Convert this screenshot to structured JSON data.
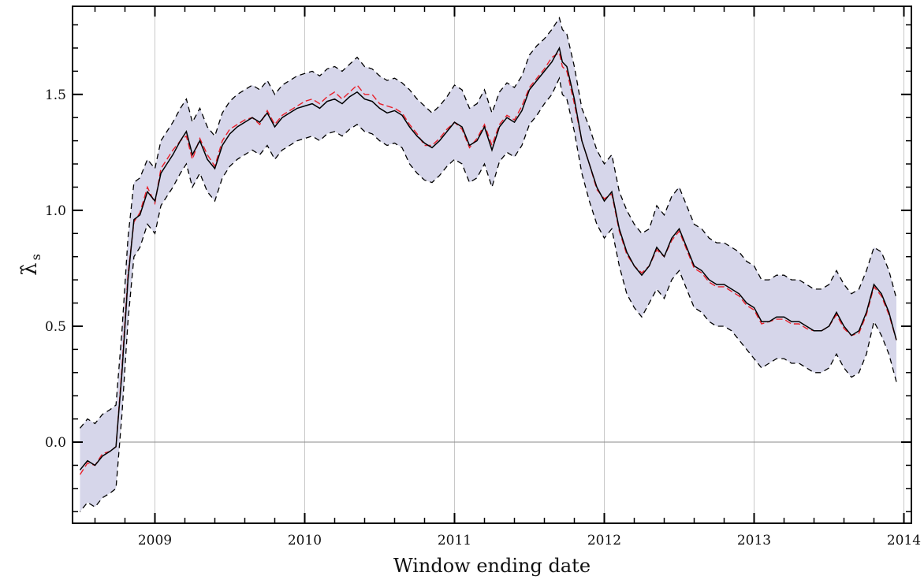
{
  "chart_data": {
    "type": "line",
    "xlabel": "Window ending date",
    "ylabel": "λ̂",
    "ylabel_main": "λ̂",
    "ylabel_sub": "s",
    "xlim": [
      2008.45,
      2014.05
    ],
    "ylim": [
      -0.35,
      1.88
    ],
    "x_ticks": [
      2009,
      2010,
      2011,
      2012,
      2013,
      2014
    ],
    "x_tick_labels": [
      "2009",
      "2010",
      "2011",
      "2012",
      "2013",
      "2014"
    ],
    "y_ticks": [
      0.0,
      0.5,
      1.0,
      1.5
    ],
    "y_tick_labels": [
      "0.0",
      "0.5",
      "1.0",
      "1.5"
    ],
    "grid": "vertical lines at year ticks",
    "zero_line": true,
    "band_color": "#d6d6ea",
    "line_color": "#000000",
    "dashed_line_color": "#e8202a",
    "band_edge_color": "#000000",
    "x": [
      2008.5,
      2008.55,
      2008.6,
      2008.65,
      2008.7,
      2008.74,
      2008.78,
      2008.82,
      2008.86,
      2008.9,
      2008.95,
      2009.0,
      2009.04,
      2009.08,
      2009.12,
      2009.17,
      2009.21,
      2009.25,
      2009.3,
      2009.35,
      2009.4,
      2009.45,
      2009.5,
      2009.55,
      2009.6,
      2009.65,
      2009.7,
      2009.75,
      2009.8,
      2009.85,
      2009.9,
      2009.95,
      2010.0,
      2010.05,
      2010.1,
      2010.15,
      2010.2,
      2010.25,
      2010.3,
      2010.35,
      2010.4,
      2010.45,
      2010.5,
      2010.55,
      2010.6,
      2010.65,
      2010.7,
      2010.75,
      2010.8,
      2010.85,
      2010.9,
      2010.95,
      2011.0,
      2011.05,
      2011.1,
      2011.15,
      2011.2,
      2011.25,
      2011.3,
      2011.35,
      2011.4,
      2011.45,
      2011.5,
      2011.55,
      2011.6,
      2011.65,
      2011.7,
      2011.72,
      2011.75,
      2011.8,
      2011.85,
      2011.9,
      2011.95,
      2012.0,
      2012.05,
      2012.1,
      2012.15,
      2012.2,
      2012.25,
      2012.3,
      2012.35,
      2012.4,
      2012.45,
      2012.5,
      2012.55,
      2012.6,
      2012.65,
      2012.7,
      2012.75,
      2012.8,
      2012.85,
      2012.9,
      2012.95,
      2013.0,
      2013.05,
      2013.1,
      2013.15,
      2013.2,
      2013.25,
      2013.3,
      2013.35,
      2013.4,
      2013.45,
      2013.5,
      2013.55,
      2013.6,
      2013.65,
      2013.7,
      2013.75,
      2013.8,
      2013.85,
      2013.9,
      2013.95
    ],
    "series": [
      {
        "role": "estimate",
        "values": [
          -0.12,
          -0.08,
          -0.1,
          -0.06,
          -0.04,
          -0.02,
          0.3,
          0.7,
          0.96,
          0.98,
          1.08,
          1.04,
          1.16,
          1.2,
          1.24,
          1.3,
          1.34,
          1.24,
          1.3,
          1.22,
          1.18,
          1.28,
          1.33,
          1.36,
          1.38,
          1.4,
          1.38,
          1.42,
          1.36,
          1.4,
          1.42,
          1.44,
          1.45,
          1.46,
          1.44,
          1.47,
          1.48,
          1.46,
          1.49,
          1.51,
          1.48,
          1.47,
          1.44,
          1.42,
          1.43,
          1.41,
          1.36,
          1.32,
          1.29,
          1.27,
          1.3,
          1.34,
          1.38,
          1.36,
          1.28,
          1.3,
          1.36,
          1.26,
          1.36,
          1.4,
          1.38,
          1.43,
          1.52,
          1.56,
          1.6,
          1.64,
          1.7,
          1.64,
          1.62,
          1.48,
          1.3,
          1.2,
          1.1,
          1.04,
          1.08,
          0.92,
          0.82,
          0.76,
          0.72,
          0.76,
          0.84,
          0.8,
          0.88,
          0.92,
          0.84,
          0.76,
          0.74,
          0.7,
          0.68,
          0.68,
          0.66,
          0.64,
          0.6,
          0.58,
          0.52,
          0.52,
          0.54,
          0.54,
          0.52,
          0.52,
          0.5,
          0.48,
          0.48,
          0.5,
          0.56,
          0.5,
          0.46,
          0.48,
          0.56,
          0.68,
          0.64,
          0.56,
          0.44
        ]
      },
      {
        "role": "alternative estimate (dashed)",
        "values": [
          -0.14,
          -0.09,
          -0.1,
          -0.05,
          -0.04,
          -0.02,
          0.32,
          0.72,
          0.95,
          0.99,
          1.1,
          1.03,
          1.18,
          1.22,
          1.26,
          1.3,
          1.32,
          1.22,
          1.31,
          1.24,
          1.19,
          1.3,
          1.35,
          1.37,
          1.39,
          1.4,
          1.37,
          1.43,
          1.37,
          1.41,
          1.43,
          1.45,
          1.47,
          1.48,
          1.46,
          1.49,
          1.51,
          1.48,
          1.51,
          1.54,
          1.5,
          1.5,
          1.46,
          1.45,
          1.44,
          1.42,
          1.37,
          1.33,
          1.28,
          1.28,
          1.31,
          1.35,
          1.38,
          1.35,
          1.27,
          1.31,
          1.37,
          1.28,
          1.37,
          1.41,
          1.39,
          1.45,
          1.53,
          1.57,
          1.61,
          1.66,
          1.68,
          1.62,
          1.6,
          1.46,
          1.3,
          1.2,
          1.09,
          1.05,
          1.07,
          0.91,
          0.81,
          0.76,
          0.73,
          0.76,
          0.83,
          0.8,
          0.87,
          0.91,
          0.83,
          0.75,
          0.73,
          0.69,
          0.67,
          0.67,
          0.65,
          0.63,
          0.59,
          0.57,
          0.51,
          0.52,
          0.53,
          0.53,
          0.51,
          0.51,
          0.49,
          0.48,
          0.48,
          0.5,
          0.55,
          0.49,
          0.46,
          0.47,
          0.55,
          0.67,
          0.63,
          0.55,
          0.44
        ]
      }
    ],
    "band": {
      "lower": [
        -0.3,
        -0.26,
        -0.28,
        -0.24,
        -0.22,
        -0.2,
        0.12,
        0.52,
        0.8,
        0.84,
        0.94,
        0.9,
        1.02,
        1.06,
        1.1,
        1.16,
        1.2,
        1.1,
        1.16,
        1.08,
        1.04,
        1.14,
        1.19,
        1.22,
        1.24,
        1.26,
        1.24,
        1.28,
        1.22,
        1.26,
        1.28,
        1.3,
        1.31,
        1.32,
        1.3,
        1.33,
        1.34,
        1.32,
        1.35,
        1.37,
        1.34,
        1.33,
        1.3,
        1.28,
        1.29,
        1.27,
        1.2,
        1.16,
        1.13,
        1.12,
        1.15,
        1.19,
        1.22,
        1.2,
        1.12,
        1.14,
        1.2,
        1.1,
        1.21,
        1.25,
        1.23,
        1.28,
        1.37,
        1.41,
        1.46,
        1.5,
        1.57,
        1.5,
        1.48,
        1.34,
        1.16,
        1.04,
        0.94,
        0.88,
        0.92,
        0.76,
        0.64,
        0.58,
        0.54,
        0.6,
        0.66,
        0.62,
        0.7,
        0.74,
        0.66,
        0.58,
        0.56,
        0.52,
        0.5,
        0.5,
        0.48,
        0.44,
        0.4,
        0.36,
        0.32,
        0.34,
        0.36,
        0.36,
        0.34,
        0.34,
        0.32,
        0.3,
        0.3,
        0.32,
        0.38,
        0.32,
        0.28,
        0.3,
        0.38,
        0.52,
        0.46,
        0.38,
        0.26
      ],
      "upper": [
        0.06,
        0.1,
        0.08,
        0.12,
        0.14,
        0.16,
        0.48,
        0.88,
        1.12,
        1.14,
        1.22,
        1.18,
        1.3,
        1.34,
        1.38,
        1.44,
        1.48,
        1.38,
        1.44,
        1.36,
        1.32,
        1.42,
        1.47,
        1.5,
        1.52,
        1.54,
        1.52,
        1.56,
        1.5,
        1.54,
        1.56,
        1.58,
        1.59,
        1.6,
        1.58,
        1.61,
        1.62,
        1.6,
        1.63,
        1.66,
        1.62,
        1.61,
        1.58,
        1.56,
        1.57,
        1.55,
        1.52,
        1.48,
        1.45,
        1.42,
        1.45,
        1.49,
        1.54,
        1.52,
        1.44,
        1.46,
        1.52,
        1.42,
        1.51,
        1.55,
        1.53,
        1.58,
        1.67,
        1.71,
        1.74,
        1.78,
        1.83,
        1.78,
        1.76,
        1.62,
        1.44,
        1.36,
        1.26,
        1.2,
        1.24,
        1.08,
        1.0,
        0.94,
        0.9,
        0.92,
        1.02,
        0.98,
        1.06,
        1.1,
        1.02,
        0.94,
        0.92,
        0.88,
        0.86,
        0.86,
        0.84,
        0.82,
        0.78,
        0.76,
        0.7,
        0.7,
        0.72,
        0.72,
        0.7,
        0.7,
        0.68,
        0.66,
        0.66,
        0.68,
        0.74,
        0.68,
        0.64,
        0.66,
        0.74,
        0.84,
        0.82,
        0.74,
        0.62
      ]
    }
  }
}
